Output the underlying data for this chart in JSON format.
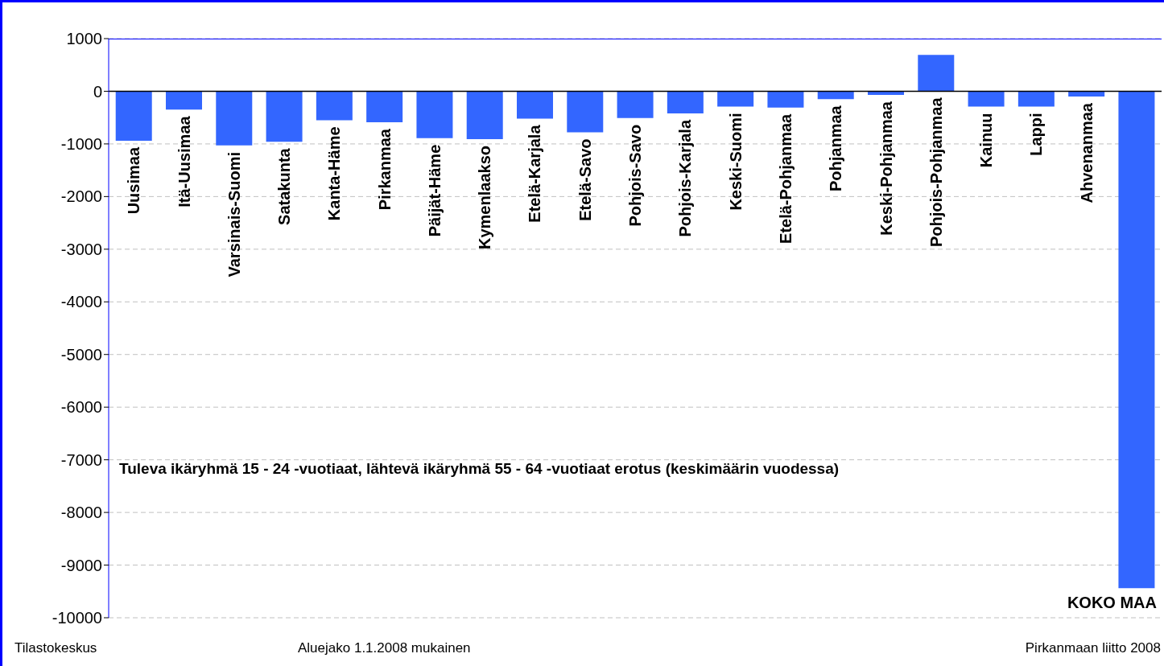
{
  "chart_data": {
    "type": "bar",
    "categories": [
      "Uusimaa",
      "Itä-Uusimaa",
      "Varsinais-Suomi",
      "Satakunta",
      "Kanta-Häme",
      "Pirkanmaa",
      "Päijät-Häme",
      "Kymenlaakso",
      "Etelä-Karjala",
      "Etelä-Savo",
      "Pohjois-Savo",
      "Pohjois-Karjala",
      "Keski-Suomi",
      "Etelä-Pohjanmaa",
      "Pohjanmaa",
      "Keski-Pohjanmaa",
      "Pohjois-Pohjanmaa",
      "Kainuu",
      "Lappi",
      "Ahvenanmaa",
      "KOKO MAA"
    ],
    "values": [
      -940,
      -350,
      -1030,
      -960,
      -550,
      -590,
      -890,
      -910,
      -520,
      -780,
      -510,
      -420,
      -290,
      -310,
      -150,
      -70,
      690,
      -290,
      -290,
      -100,
      -9440
    ],
    "color": "#3366ff",
    "ylim": [
      -10000,
      1000
    ],
    "yticks": [
      -10000,
      -9000,
      -8000,
      -7000,
      -6000,
      -5000,
      -4000,
      -3000,
      -2000,
      -1000,
      0,
      1000
    ],
    "grid": "y",
    "annotations": [
      "Tuleva ikäryhmä 15 - 24 -vuotiaat, lähtevä ikäryhmä 55 - 64 -vuotiaat erotus (keskimäärin vuodessa)",
      "Tilastokeskus",
      "Aluejako 1.1.2008 mukainen",
      "Pirkanmaan liitto 2008"
    ]
  }
}
